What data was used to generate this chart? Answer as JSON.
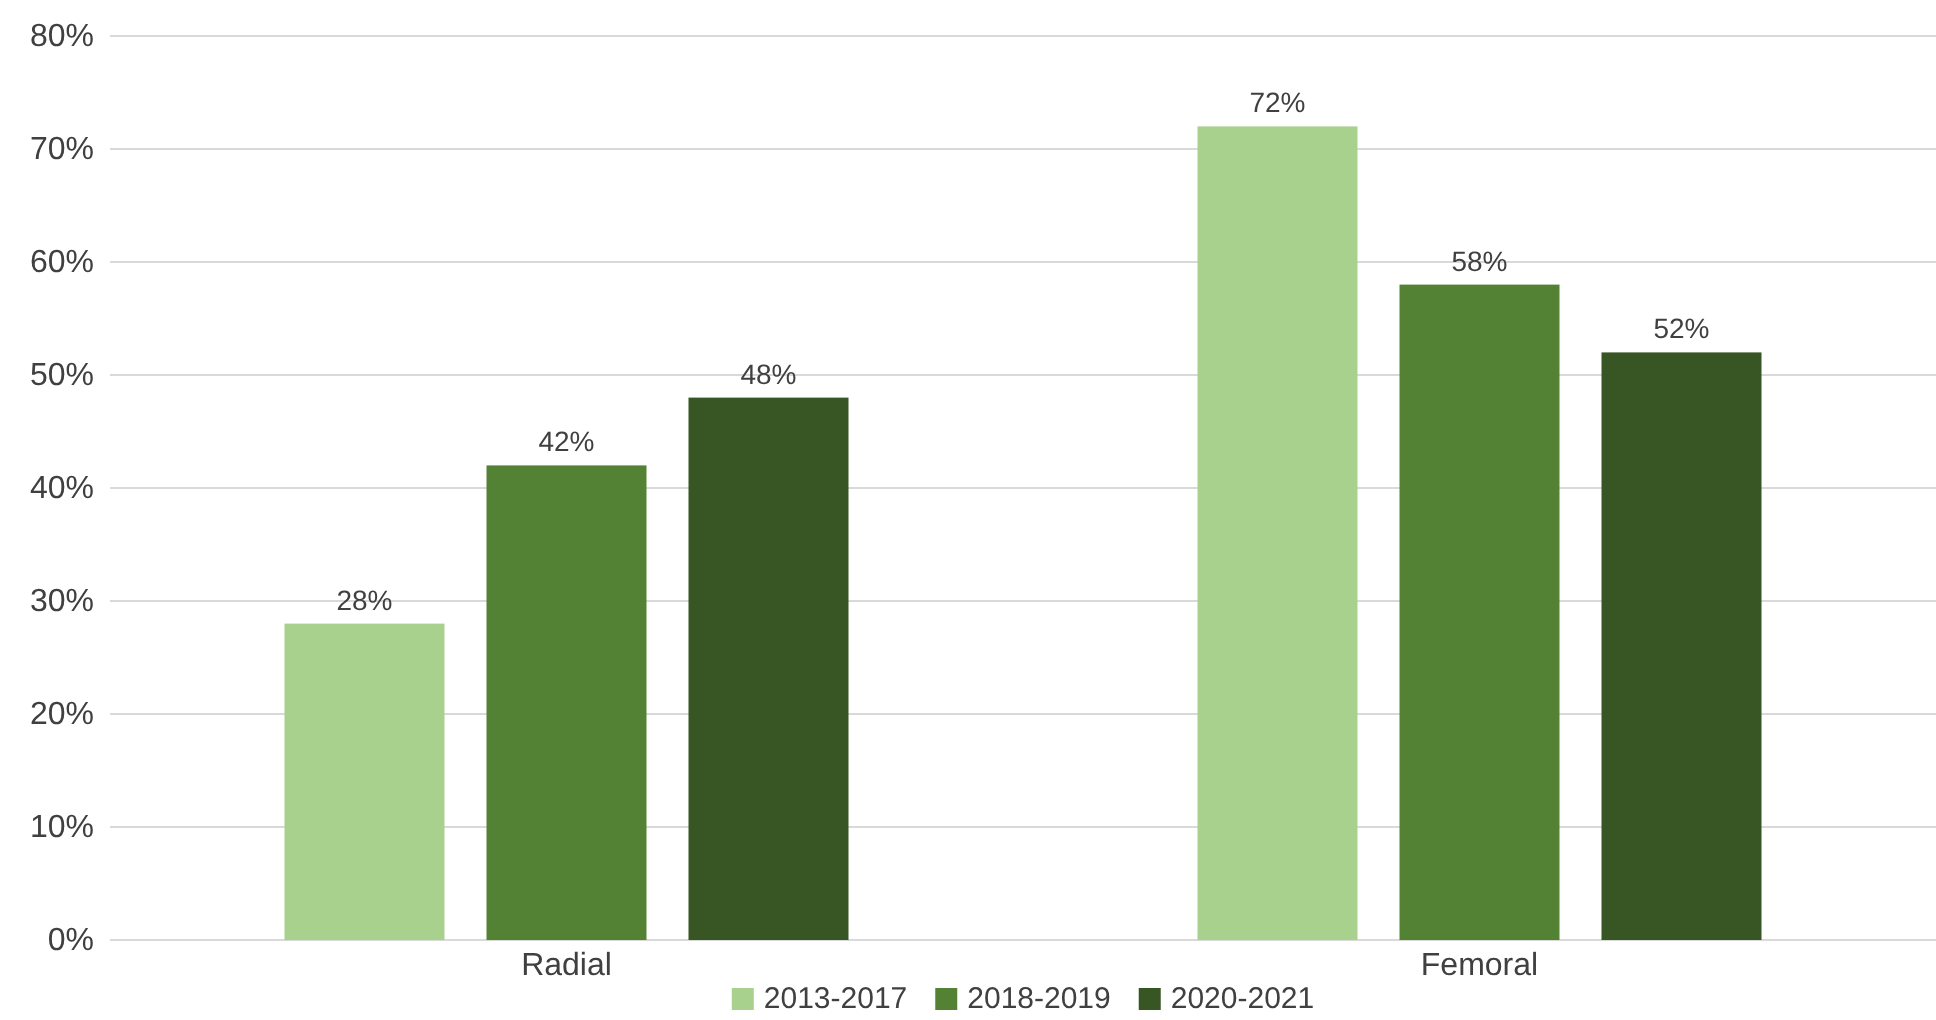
{
  "chart_data": {
    "type": "bar",
    "categories": [
      "Radial",
      "Femoral"
    ],
    "series": [
      {
        "name": "2013-2017",
        "color": "#a9d18e",
        "values": [
          28,
          72
        ],
        "value_labels": [
          "28%",
          "72%"
        ]
      },
      {
        "name": "2018-2019",
        "color": "#548235",
        "values": [
          42,
          58
        ],
        "value_labels": [
          "42%",
          "58%"
        ]
      },
      {
        "name": "2020-2021",
        "color": "#375623",
        "values": [
          48,
          52
        ],
        "value_labels": [
          "48%",
          "52%"
        ]
      }
    ],
    "ylim": [
      0,
      80
    ],
    "yticks": [
      {
        "value": 0,
        "label": "0%"
      },
      {
        "value": 10,
        "label": "10%"
      },
      {
        "value": 20,
        "label": "20%"
      },
      {
        "value": 30,
        "label": "30%"
      },
      {
        "value": 40,
        "label": "40%"
      },
      {
        "value": 50,
        "label": "50%"
      },
      {
        "value": 60,
        "label": "60%"
      },
      {
        "value": 70,
        "label": "70%"
      },
      {
        "value": 80,
        "label": "80%"
      }
    ],
    "grid": "y",
    "legend": "bottom"
  }
}
